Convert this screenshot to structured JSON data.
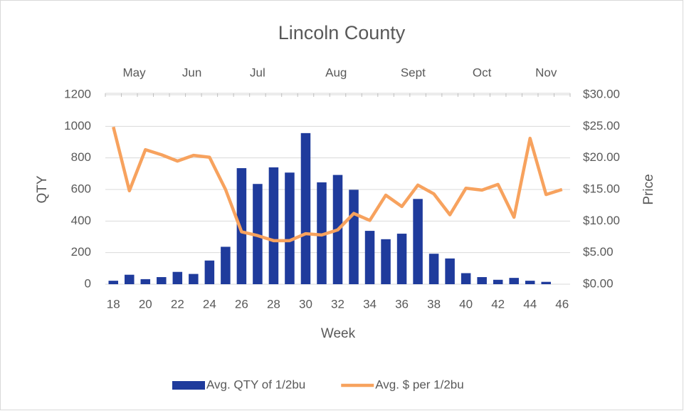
{
  "chart_data": {
    "type": "bar-line",
    "title": "Lincoln County",
    "x_label": "Week",
    "y_label": "QTY",
    "y2_label": "Price",
    "categories": [
      "18",
      null,
      "20",
      null,
      "22",
      null,
      "24",
      null,
      "26",
      null,
      "28",
      null,
      "30",
      null,
      "32",
      null,
      "34",
      null,
      "36",
      null,
      "38",
      null,
      "40",
      null,
      "42",
      null,
      "44",
      null,
      "46"
    ],
    "top_axis": {
      "labels": [
        "May",
        "Jun",
        "Jul",
        "Aug",
        "Sept",
        "Oct",
        "Nov"
      ],
      "weeks": [
        19.3,
        22.9,
        27.0,
        31.9,
        36.7,
        41.0,
        45.0
      ]
    },
    "series": [
      {
        "name": "Avg. QTY of 1/2bu",
        "type": "bar",
        "color": "#1f3b9c",
        "values": [
          22,
          60,
          32,
          45,
          78,
          65,
          150,
          237,
          735,
          635,
          740,
          707,
          957,
          645,
          692,
          598,
          338,
          285,
          320,
          540,
          193,
          163,
          70,
          45,
          28,
          40,
          22,
          15,
          null
        ]
      },
      {
        "name": "Avg. $ per 1/2bu",
        "type": "line",
        "axis": "y2",
        "color": "#f7a25e",
        "values": [
          24.9,
          14.8,
          21.3,
          20.5,
          19.5,
          20.4,
          20.1,
          15.0,
          8.3,
          7.7,
          6.9,
          6.9,
          8.0,
          7.8,
          8.6,
          11.2,
          10.1,
          14.1,
          12.3,
          15.7,
          14.3,
          11.0,
          15.2,
          14.9,
          15.8,
          10.6,
          23.1,
          14.2,
          15.0
        ]
      }
    ],
    "ylim": [
      0,
      1200
    ],
    "yticks": [
      0,
      200,
      400,
      600,
      800,
      1000,
      1200
    ],
    "y2lim": [
      0,
      30
    ],
    "y2ticks": [
      {
        "value": 0,
        "label": "$0.00"
      },
      {
        "value": 5,
        "label": "$5.00"
      },
      {
        "value": 10,
        "label": "$10.00"
      },
      {
        "value": 15,
        "label": "$15.00"
      },
      {
        "value": 20,
        "label": "$20.00"
      },
      {
        "value": 25,
        "label": "$25.00"
      },
      {
        "value": 30,
        "label": "$30.00"
      }
    ],
    "grid": true,
    "legend": "bottom"
  }
}
